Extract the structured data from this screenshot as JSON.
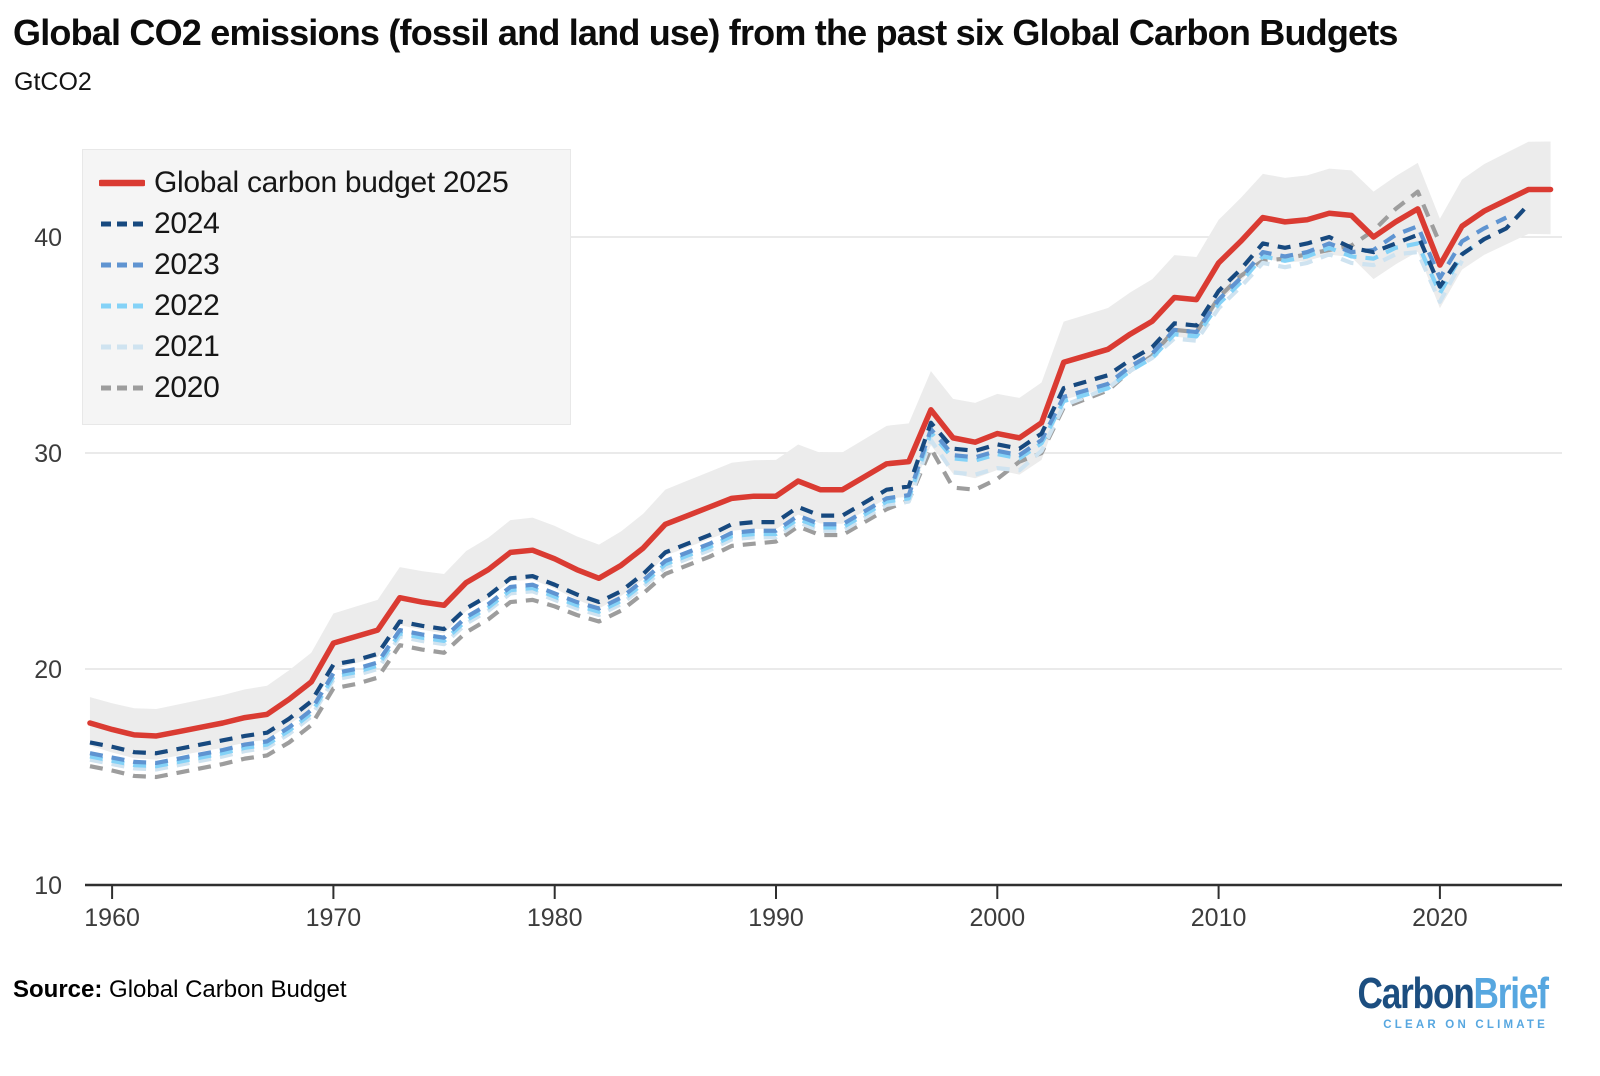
{
  "title": "Global CO2 emissions (fossil and land use) from the past six Global Carbon Budgets",
  "subtitle": "GtCO2",
  "source": {
    "label": "Source:",
    "text": " Global Carbon Budget"
  },
  "logo": {
    "part1": "Carbon",
    "part2": "Brief",
    "tagline": "CLEAR ON CLIMATE"
  },
  "colors": {
    "grid": "#e3e3e3",
    "axis": "#2f2f2f",
    "tick_text": "#3c3c3c",
    "band": "#ececec",
    "legend_bg": "#f5f5f5"
  },
  "chart_data": {
    "type": "line",
    "title": "Global CO2 emissions (fossil and land use) from the past six Global Carbon Budgets",
    "xlabel": "",
    "ylabel": "GtCO2",
    "ylim": [
      10,
      44.5
    ],
    "xlim": [
      1958.8,
      2025.8
    ],
    "yticks": [
      10,
      20,
      30,
      40
    ],
    "xticks": [
      1960,
      1970,
      1980,
      1990,
      2000,
      2010,
      2020
    ],
    "grid": "horizontal lines at 20, 30, 40; dark baseline at 10",
    "legend_position": "top-left",
    "start_year": 1959,
    "band": {
      "attached_to": "Global carbon budget 2025",
      "color": "#ececec",
      "description": "uncertainty range around Global carbon budget 2025 line",
      "half_width_upper_start": 1.2,
      "half_width_lower_start": 1.05,
      "half_width_growth_per_year": 0.0155
    },
    "series": [
      {
        "name": "2020",
        "color": "#9d9d9d",
        "style": "dashed",
        "end_year": 2020,
        "values": [
          15.5,
          15.3,
          15.05,
          15.0,
          15.2,
          15.4,
          15.6,
          15.85,
          16.0,
          16.6,
          17.4,
          19.1,
          19.3,
          19.6,
          21.1,
          20.9,
          20.75,
          21.7,
          22.3,
          23.1,
          23.2,
          22.9,
          22.5,
          22.2,
          22.7,
          23.5,
          24.4,
          24.8,
          25.2,
          25.7,
          25.8,
          25.9,
          26.6,
          26.2,
          26.2,
          26.8,
          27.4,
          27.8,
          30.2,
          28.4,
          28.3,
          28.8,
          29.6,
          30.0,
          32.1,
          32.5,
          32.9,
          33.8,
          34.5,
          35.7,
          35.6,
          37.2,
          38.2,
          38.9,
          39.0,
          39.2,
          39.4,
          39.6,
          40.3,
          41.3,
          42.1,
          39.7
        ]
      },
      {
        "name": "2021",
        "color": "#cfe3f0",
        "style": "dashed",
        "end_year": 2021,
        "values": [
          15.8,
          15.6,
          15.4,
          15.35,
          15.55,
          15.75,
          15.95,
          16.2,
          16.35,
          17.0,
          17.8,
          19.5,
          19.7,
          20.0,
          21.5,
          21.3,
          21.15,
          22.1,
          22.7,
          23.5,
          23.6,
          23.2,
          22.8,
          22.5,
          23.0,
          23.8,
          24.7,
          25.1,
          25.5,
          26.0,
          26.1,
          26.1,
          26.8,
          26.4,
          26.4,
          27.0,
          27.6,
          27.75,
          30.6,
          29.1,
          29.0,
          29.3,
          29.2,
          30.1,
          32.2,
          32.6,
          33.0,
          33.8,
          34.4,
          35.3,
          35.2,
          36.7,
          37.7,
          38.8,
          38.6,
          38.8,
          39.2,
          38.8,
          38.7,
          39.2,
          39.3,
          37.0,
          38.9
        ]
      },
      {
        "name": "2022",
        "color": "#84d2f7",
        "style": "dashed",
        "end_year": 2022,
        "values": [
          15.95,
          15.75,
          15.55,
          15.5,
          15.7,
          15.9,
          16.1,
          16.35,
          16.5,
          17.15,
          17.95,
          19.65,
          19.85,
          20.15,
          21.65,
          21.45,
          21.3,
          22.25,
          22.85,
          23.65,
          23.75,
          23.35,
          22.95,
          22.65,
          23.15,
          23.95,
          24.85,
          25.25,
          25.65,
          26.15,
          26.25,
          26.25,
          26.95,
          26.55,
          26.55,
          27.15,
          27.75,
          27.9,
          30.95,
          29.75,
          29.65,
          29.95,
          29.75,
          30.45,
          32.4,
          32.7,
          33.0,
          33.8,
          34.4,
          35.5,
          35.4,
          36.9,
          37.9,
          39.1,
          38.9,
          39.1,
          39.5,
          39.1,
          39.0,
          39.5,
          39.7,
          37.4,
          39.2,
          39.9
        ]
      },
      {
        "name": "2023",
        "color": "#5f94d1",
        "style": "dashed",
        "end_year": 2023,
        "values": [
          16.1,
          15.9,
          15.7,
          15.65,
          15.85,
          16.05,
          16.25,
          16.5,
          16.65,
          17.3,
          18.1,
          19.8,
          20.0,
          20.3,
          21.8,
          21.6,
          21.45,
          22.4,
          23.0,
          23.8,
          23.9,
          23.5,
          23.1,
          22.8,
          23.3,
          24.1,
          25.0,
          25.4,
          25.8,
          26.3,
          26.4,
          26.4,
          27.1,
          26.7,
          26.7,
          27.3,
          27.9,
          28.05,
          31.1,
          29.9,
          29.8,
          30.1,
          29.9,
          30.6,
          32.6,
          32.9,
          33.2,
          34.0,
          34.6,
          35.7,
          35.6,
          37.1,
          38.1,
          39.3,
          39.1,
          39.3,
          39.7,
          39.3,
          39.4,
          40.1,
          40.5,
          38.1,
          39.8,
          40.4,
          40.9
        ]
      },
      {
        "name": "2024",
        "color": "#17497f",
        "style": "dashed",
        "end_year": 2024,
        "values": [
          16.6,
          16.4,
          16.15,
          16.1,
          16.3,
          16.5,
          16.7,
          16.9,
          17.05,
          17.7,
          18.5,
          20.2,
          20.4,
          20.7,
          22.2,
          22.0,
          21.85,
          22.8,
          23.4,
          24.2,
          24.3,
          23.9,
          23.45,
          23.1,
          23.6,
          24.4,
          25.4,
          25.8,
          26.2,
          26.7,
          26.8,
          26.8,
          27.5,
          27.1,
          27.1,
          27.7,
          28.3,
          28.45,
          31.4,
          30.2,
          30.1,
          30.4,
          30.2,
          30.9,
          33.0,
          33.3,
          33.6,
          34.3,
          34.9,
          36.0,
          35.9,
          37.5,
          38.5,
          39.7,
          39.5,
          39.7,
          40.0,
          39.5,
          39.3,
          39.7,
          40.1,
          37.7,
          39.2,
          39.9,
          40.4,
          41.5
        ]
      },
      {
        "name": "Global carbon budget 2025",
        "color": "#da3b32",
        "style": "solid",
        "end_year": 2025,
        "values": [
          17.5,
          17.2,
          16.95,
          16.9,
          17.1,
          17.3,
          17.5,
          17.75,
          17.9,
          18.6,
          19.4,
          21.2,
          21.5,
          21.8,
          23.3,
          23.1,
          22.95,
          24.0,
          24.6,
          25.4,
          25.5,
          25.1,
          24.6,
          24.2,
          24.8,
          25.6,
          26.7,
          27.1,
          27.5,
          27.9,
          28.0,
          28.0,
          28.7,
          28.3,
          28.3,
          28.9,
          29.5,
          29.6,
          32.0,
          30.7,
          30.5,
          30.9,
          30.7,
          31.4,
          34.2,
          34.5,
          34.8,
          35.5,
          36.1,
          37.2,
          37.1,
          38.8,
          39.8,
          40.9,
          40.7,
          40.8,
          41.1,
          41.0,
          40.0,
          40.7,
          41.3,
          38.7,
          40.5,
          41.2,
          41.7,
          42.2,
          42.2
        ]
      }
    ],
    "legend_order": [
      "Global carbon budget 2025",
      "2024",
      "2023",
      "2022",
      "2021",
      "2020"
    ]
  }
}
